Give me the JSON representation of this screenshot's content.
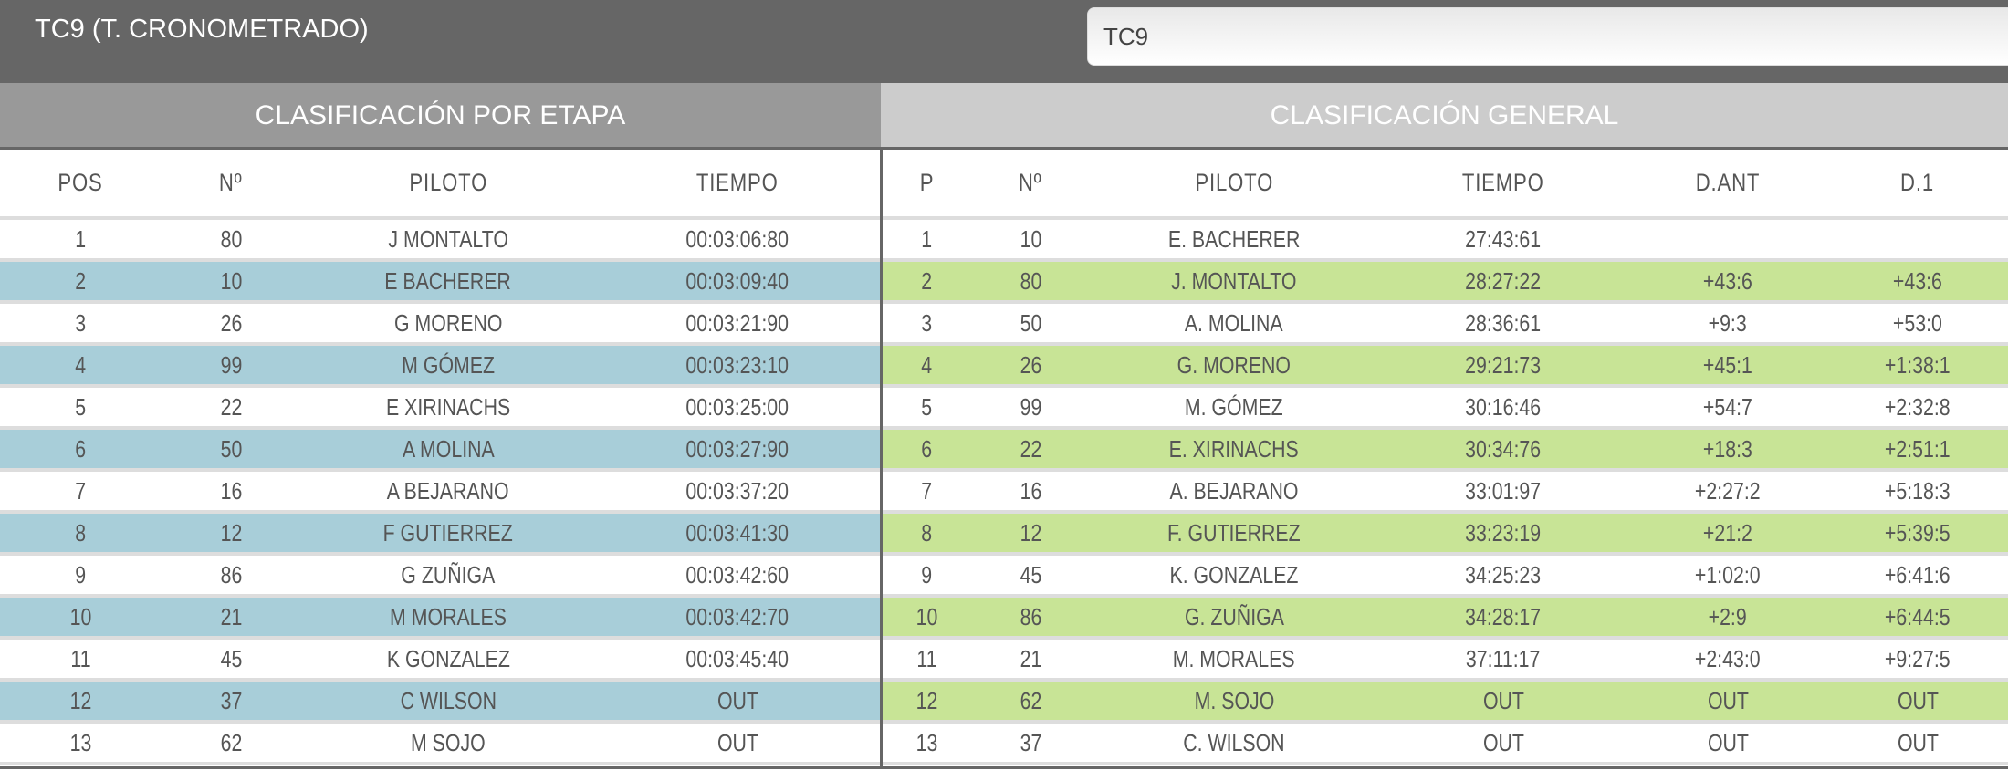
{
  "header": {
    "title": "TC9 (T. CRONOMETRADO)",
    "stage_select_value": "TC9"
  },
  "stage": {
    "title": "CLASIFICACIÓN POR ETAPA",
    "columns": [
      "POS",
      "Nº",
      "PILOTO",
      "TIEMPO"
    ],
    "rows": [
      [
        "1",
        "80",
        "J MONTALTO",
        "00:03:06:80"
      ],
      [
        "2",
        "10",
        "E BACHERER",
        "00:03:09:40"
      ],
      [
        "3",
        "26",
        "G MORENO",
        "00:03:21:90"
      ],
      [
        "4",
        "99",
        "M GÓMEZ",
        "00:03:23:10"
      ],
      [
        "5",
        "22",
        "E XIRINACHS",
        "00:03:25:00"
      ],
      [
        "6",
        "50",
        "A MOLINA",
        "00:03:27:90"
      ],
      [
        "7",
        "16",
        "A BEJARANO",
        "00:03:37:20"
      ],
      [
        "8",
        "12",
        "F GUTIERREZ",
        "00:03:41:30"
      ],
      [
        "9",
        "86",
        "G ZUÑIGA",
        "00:03:42:60"
      ],
      [
        "10",
        "21",
        "M MORALES",
        "00:03:42:70"
      ],
      [
        "11",
        "45",
        "K GONZALEZ",
        "00:03:45:40"
      ],
      [
        "12",
        "37",
        "C WILSON",
        "OUT"
      ],
      [
        "13",
        "62",
        "M SOJO",
        "OUT"
      ]
    ]
  },
  "general": {
    "title": "CLASIFICACIÓN GENERAL",
    "columns": [
      "P",
      "Nº",
      "PILOTO",
      "TIEMPO",
      "D.ANT",
      "D.1"
    ],
    "rows": [
      [
        "1",
        "10",
        "E. BACHERER",
        "27:43:61",
        "",
        ""
      ],
      [
        "2",
        "80",
        "J. MONTALTO",
        "28:27:22",
        "+43:6",
        "+43:6"
      ],
      [
        "3",
        "50",
        "A. MOLINA",
        "28:36:61",
        "+9:3",
        "+53:0"
      ],
      [
        "4",
        "26",
        "G. MORENO",
        "29:21:73",
        "+45:1",
        "+1:38:1"
      ],
      [
        "5",
        "99",
        "M. GÓMEZ",
        "30:16:46",
        "+54:7",
        "+2:32:8"
      ],
      [
        "6",
        "22",
        "E. XIRINACHS",
        "30:34:76",
        "+18:3",
        "+2:51:1"
      ],
      [
        "7",
        "16",
        "A. BEJARANO",
        "33:01:97",
        "+2:27:2",
        "+5:18:3"
      ],
      [
        "8",
        "12",
        "F. GUTIERREZ",
        "33:23:19",
        "+21:2",
        "+5:39:5"
      ],
      [
        "9",
        "45",
        "K. GONZALEZ",
        "34:25:23",
        "+1:02:0",
        "+6:41:6"
      ],
      [
        "10",
        "86",
        "G. ZUÑIGA",
        "34:28:17",
        "+2:9",
        "+6:44:5"
      ],
      [
        "11",
        "21",
        "M. MORALES",
        "37:11:17",
        "+2:43:0",
        "+9:27:5"
      ],
      [
        "12",
        "62",
        "M. SOJO",
        "OUT",
        "OUT",
        "OUT"
      ],
      [
        "13",
        "37",
        "C. WILSON",
        "OUT",
        "OUT",
        "OUT"
      ]
    ]
  },
  "colors": {
    "stage_alt_row": "#a8ced9",
    "general_alt_row": "#c8e496",
    "topbar": "#666666"
  }
}
